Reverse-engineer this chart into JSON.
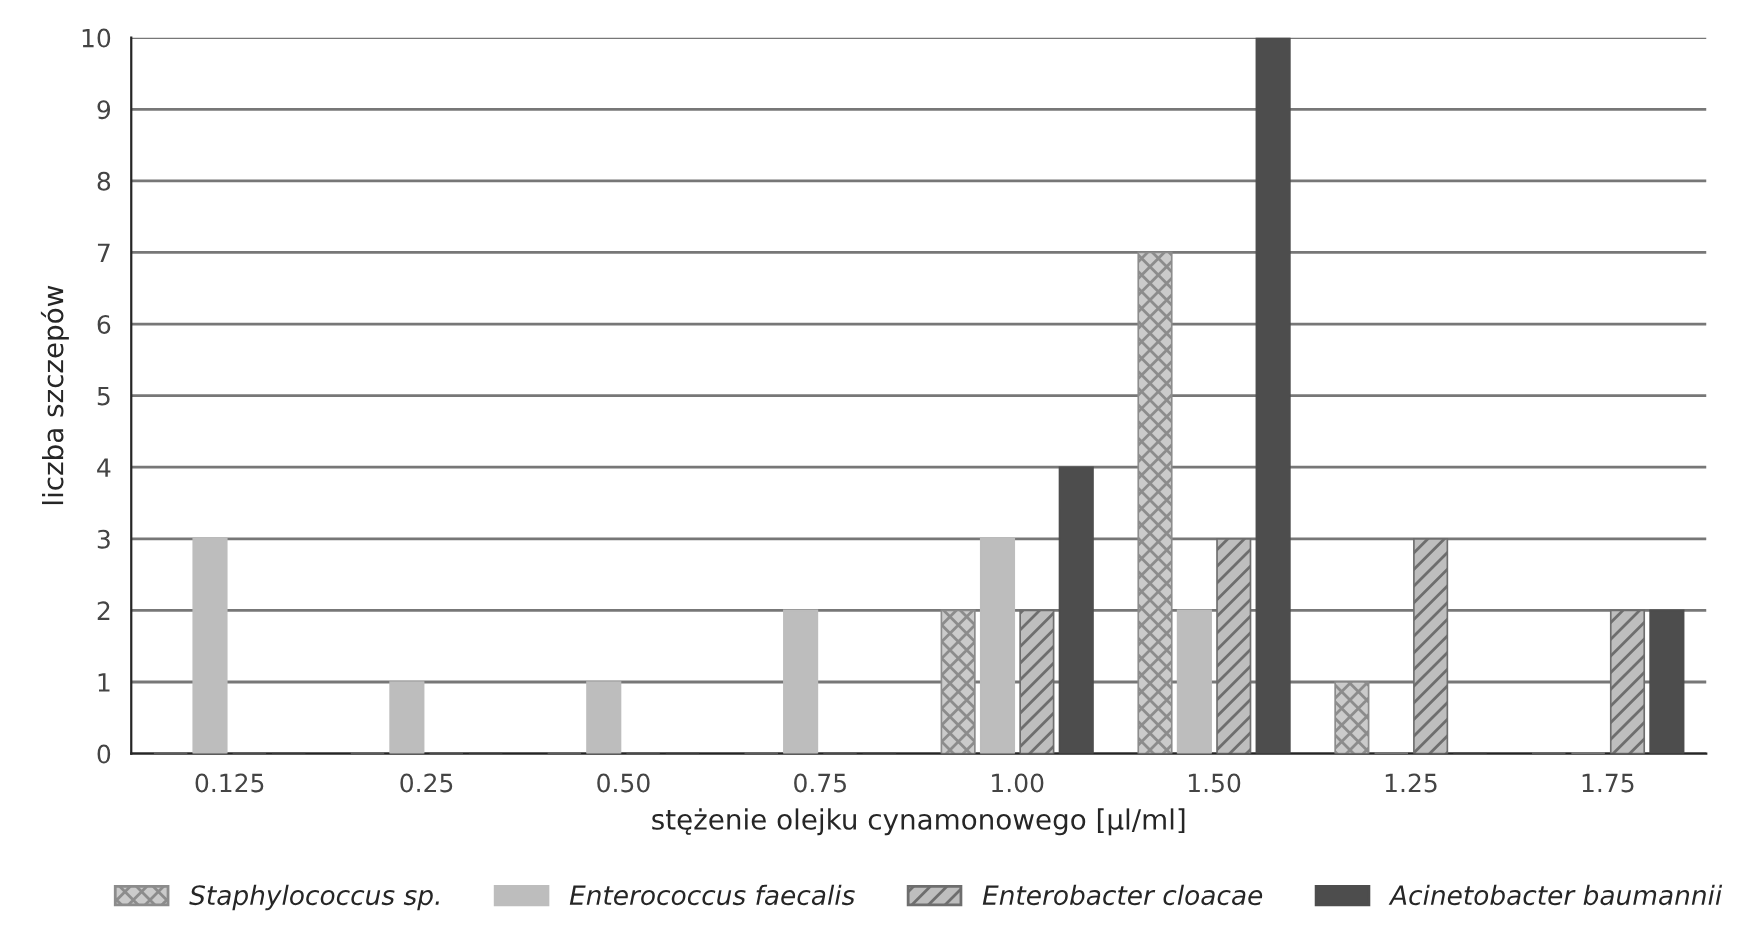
{
  "chart_data": {
    "type": "bar",
    "xlabel": "stężenie olejku cynamonowego [µl/ml]",
    "ylabel": "liczba szczepów",
    "categories": [
      "0.125",
      "0.25",
      "0.50",
      "0.75",
      "1.00",
      "1.50",
      "1.25",
      "1.75"
    ],
    "series": [
      {
        "name": "Staphylococcus sp.",
        "color": "#8c8c8c",
        "values": [
          0,
          0,
          0,
          0,
          2,
          7,
          1,
          0
        ]
      },
      {
        "name": "Enterococcus faecalis",
        "color": "#bdbdbd",
        "values": [
          3,
          1,
          1,
          2,
          3,
          2,
          0,
          0
        ]
      },
      {
        "name": "Enterobacter cloacae",
        "color": "#6e6e6e",
        "values": [
          0,
          0,
          0,
          0,
          2,
          3,
          3,
          2
        ]
      },
      {
        "name": "Acinetobacter baumannii",
        "color": "#4d4d4d",
        "values": [
          0,
          0,
          0,
          0,
          4,
          10,
          0,
          2
        ]
      }
    ],
    "ylim": [
      0,
      10
    ],
    "yticks": [
      0,
      1,
      2,
      3,
      4,
      5,
      6,
      7,
      8,
      9,
      10
    ],
    "grid": "y",
    "legend": "bottom"
  }
}
